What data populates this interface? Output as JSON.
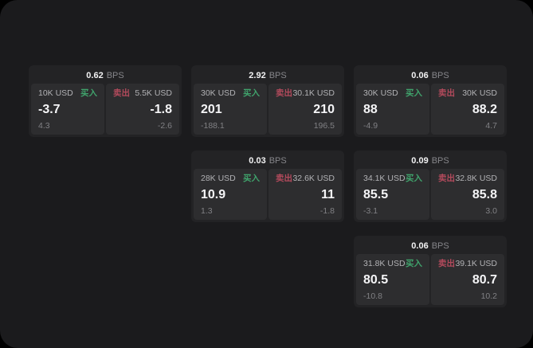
{
  "labels": {
    "buy": "买入",
    "sell": "卖出",
    "bps": "BPS"
  },
  "colors": {
    "window_bg": "#1b1b1d",
    "card_bg": "#232325",
    "panel_bg": "#2d2d2f",
    "buy_green": "#40a36c",
    "sell_red": "#b24a5c",
    "primary_text": "#f5f5f7",
    "muted_text": "#808084"
  },
  "cards": [
    {
      "bps": "0.62",
      "buy": {
        "notional": "10K USD",
        "price": "-3.7",
        "delta": "4.3"
      },
      "sell": {
        "notional": "5.5K USD",
        "price": "-1.8",
        "delta": "-2.6"
      }
    },
    {
      "bps": "2.92",
      "buy": {
        "notional": "30K USD",
        "price": "201",
        "delta": "-188.1"
      },
      "sell": {
        "notional": "30.1K USD",
        "price": "210",
        "delta": "196.5"
      }
    },
    {
      "bps": "0.06",
      "buy": {
        "notional": "30K USD",
        "price": "88",
        "delta": "-4.9"
      },
      "sell": {
        "notional": "30K USD",
        "price": "88.2",
        "delta": "4.7"
      }
    },
    {
      "bps": "0.03",
      "buy": {
        "notional": "28K USD",
        "price": "10.9",
        "delta": "1.3"
      },
      "sell": {
        "notional": "32.6K USD",
        "price": "11",
        "delta": "-1.8"
      }
    },
    {
      "bps": "0.09",
      "buy": {
        "notional": "34.1K USD",
        "price": "85.5",
        "delta": "-3.1"
      },
      "sell": {
        "notional": "32.8K USD",
        "price": "85.8",
        "delta": "3.0"
      }
    },
    {
      "bps": "0.06",
      "buy": {
        "notional": "31.8K USD",
        "price": "80.5",
        "delta": "-10.8"
      },
      "sell": {
        "notional": "39.1K USD",
        "price": "80.7",
        "delta": "10.2"
      }
    }
  ]
}
